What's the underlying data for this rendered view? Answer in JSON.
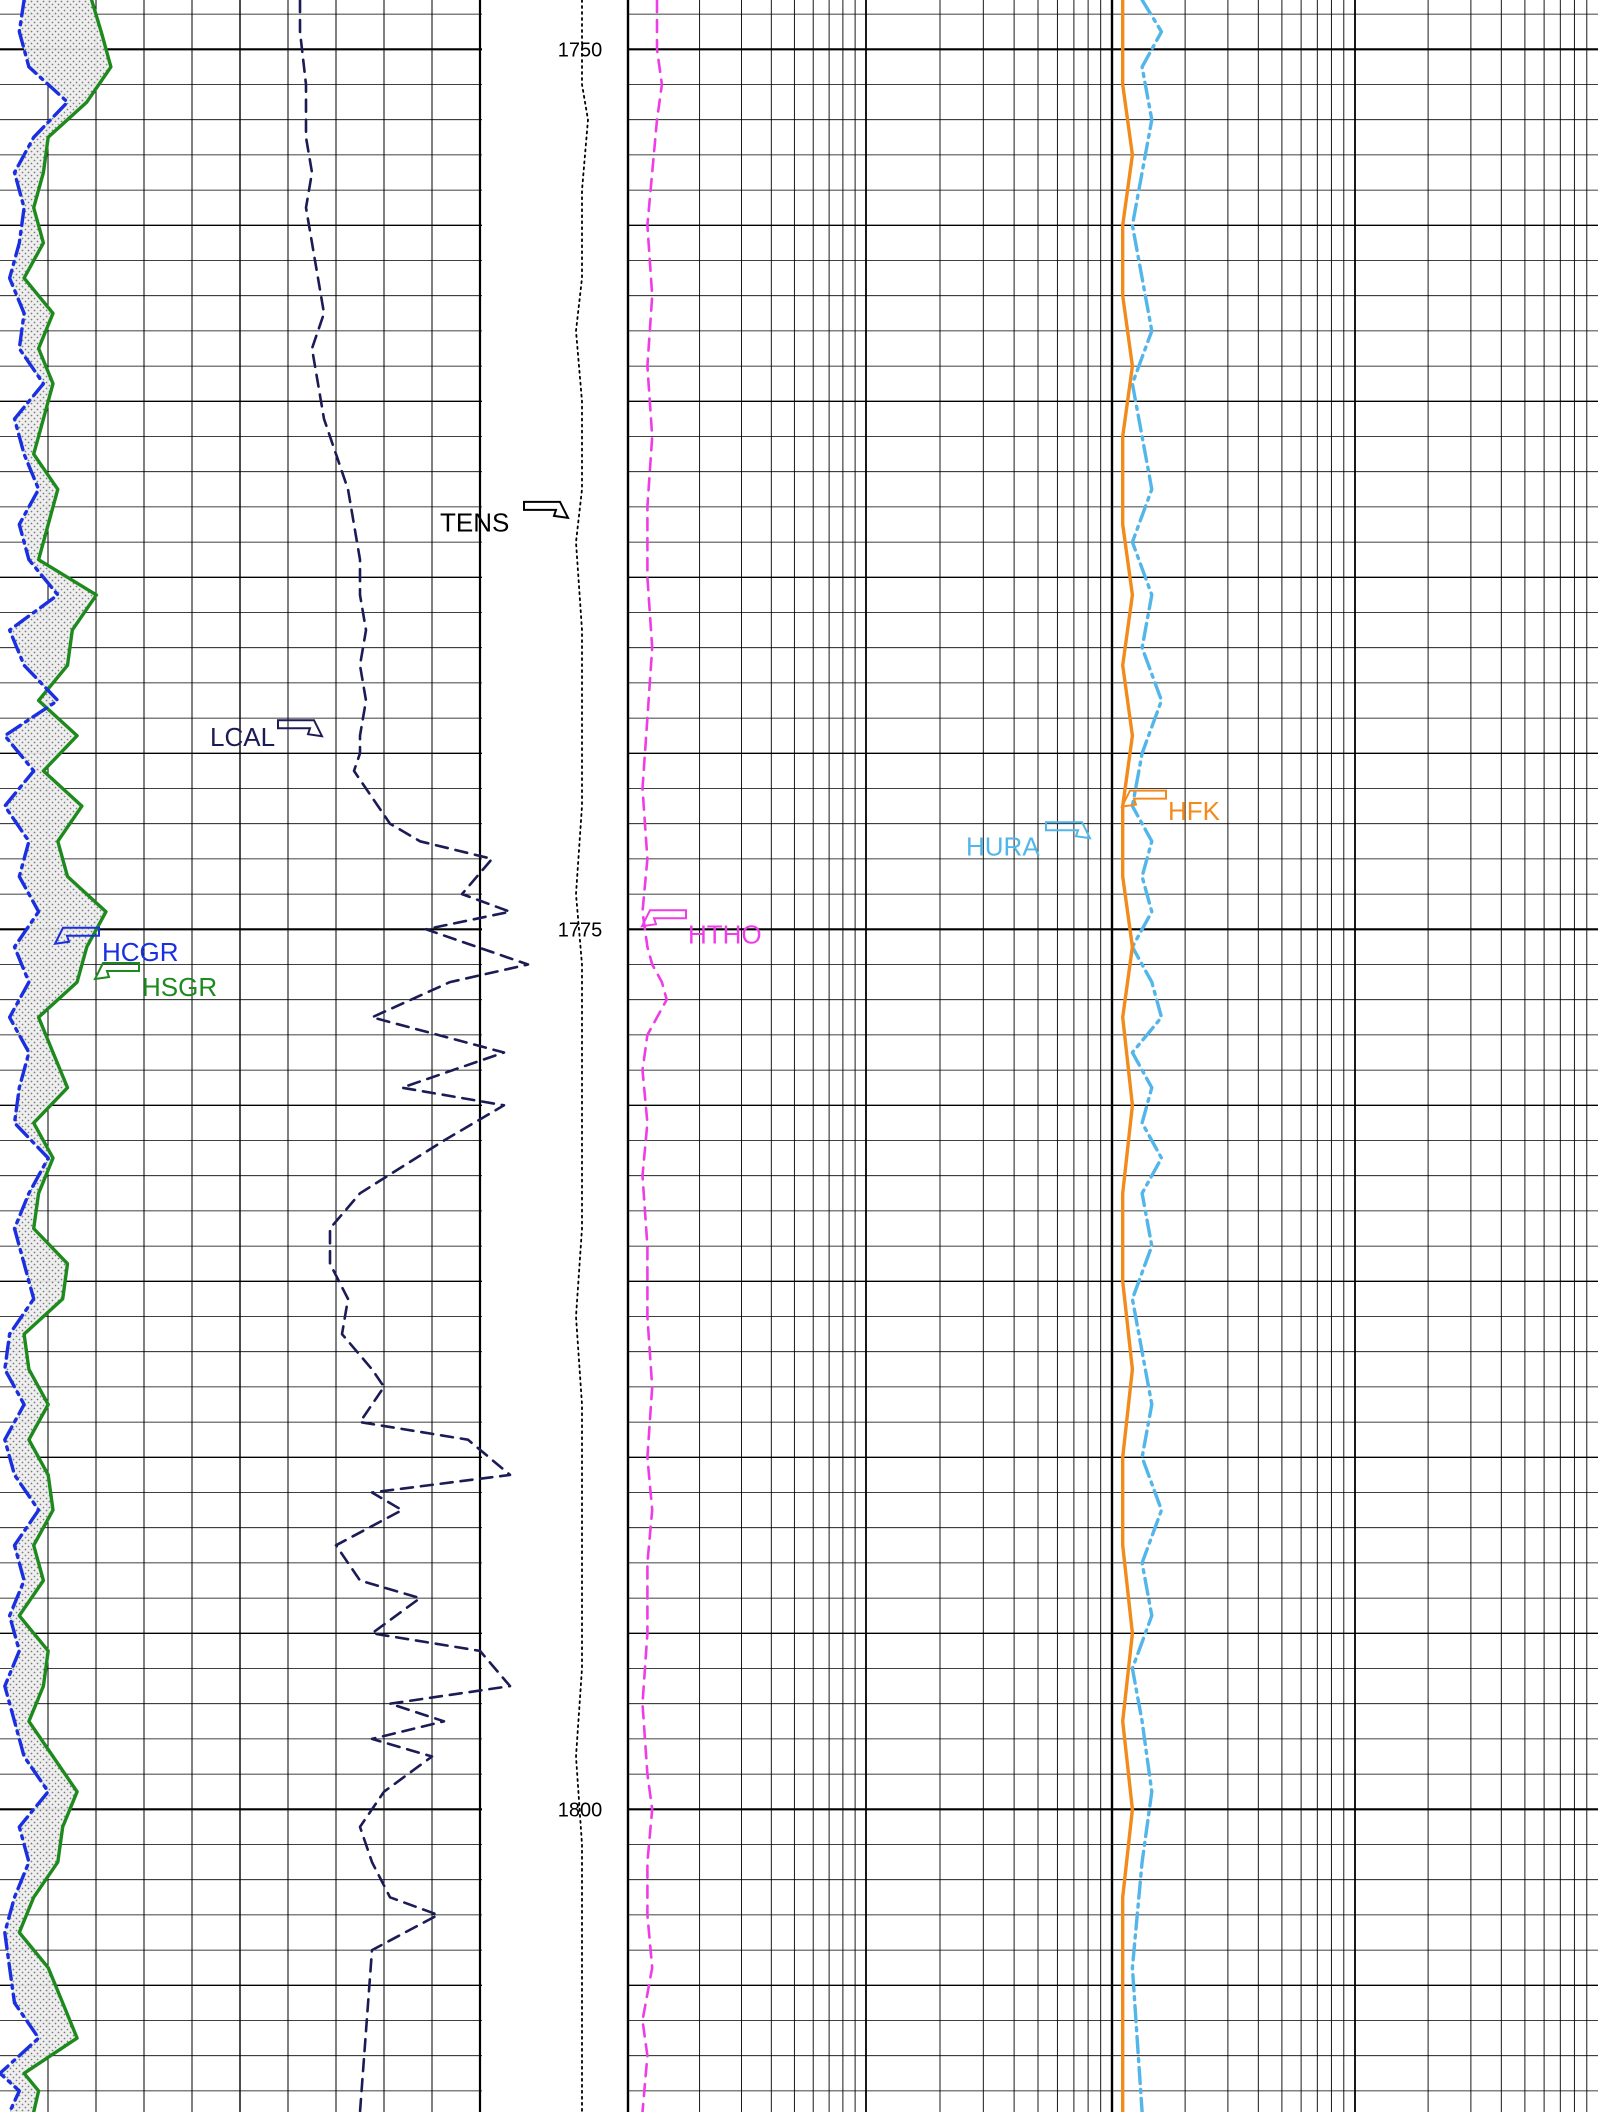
{
  "chart_data": {
    "type": "line",
    "depth_axis": {
      "range": [
        1748.6,
        1808.6
      ],
      "tick_labels": [
        "1750",
        "1775",
        "1800"
      ],
      "tick_values": [
        1750,
        1775,
        1800
      ],
      "direction": "downward"
    },
    "grid": true,
    "tracks": [
      {
        "track": 1,
        "curves": [
          {
            "name": "HSGR",
            "color": "#1e8a1e",
            "style": "solid",
            "x": [
              0.19,
              0.21,
              0.23,
              0.18,
              0.1,
              0.09,
              0.07,
              0.09,
              0.05,
              0.11,
              0.08,
              0.11,
              0.09,
              0.07,
              0.12,
              0.1,
              0.08,
              0.2,
              0.15,
              0.14,
              0.08,
              0.16,
              0.09,
              0.17,
              0.12,
              0.14,
              0.22,
              0.18,
              0.16,
              0.08,
              0.11,
              0.14,
              0.07,
              0.11,
              0.08,
              0.07,
              0.14,
              0.13,
              0.05,
              0.06,
              0.1,
              0.06,
              0.1,
              0.11,
              0.07,
              0.09,
              0.04,
              0.1,
              0.09,
              0.06,
              0.11,
              0.16,
              0.13,
              0.12,
              0.07,
              0.04,
              0.1,
              0.13,
              0.16,
              0.05,
              0.08,
              0.07
            ],
            "depth": [
              1748.6,
              1749.5,
              1750.5,
              1751.5,
              1752.5,
              1753.5,
              1754.5,
              1755.5,
              1756.5,
              1757.5,
              1758.5,
              1759.5,
              1760.5,
              1761.5,
              1762.5,
              1763.5,
              1764.5,
              1765.5,
              1766.5,
              1767.5,
              1768.5,
              1769.5,
              1770.5,
              1771.5,
              1772.5,
              1773.5,
              1774.5,
              1775.5,
              1776.5,
              1777.5,
              1778.5,
              1779.5,
              1780.5,
              1781.5,
              1782.5,
              1783.5,
              1784.5,
              1785.5,
              1786.5,
              1787.5,
              1788.5,
              1789.5,
              1790.5,
              1791.5,
              1792.5,
              1793.5,
              1794.5,
              1795.5,
              1796.5,
              1797.5,
              1798.5,
              1799.5,
              1800.5,
              1801.5,
              1802.5,
              1803.5,
              1804.5,
              1805.5,
              1806.5,
              1807.5,
              1808.0,
              1808.6
            ]
          },
          {
            "name": "HCGR",
            "color": "#1a2fe0",
            "style": "dash-dot",
            "x": [
              0.05,
              0.04,
              0.06,
              0.14,
              0.07,
              0.03,
              0.05,
              0.04,
              0.02,
              0.05,
              0.04,
              0.09,
              0.03,
              0.05,
              0.08,
              0.04,
              0.06,
              0.12,
              0.02,
              0.05,
              0.12,
              0.01,
              0.07,
              0.01,
              0.06,
              0.04,
              0.08,
              0.03,
              0.06,
              0.02,
              0.06,
              0.04,
              0.03,
              0.1,
              0.06,
              0.03,
              0.05,
              0.07,
              0.02,
              0.01,
              0.05,
              0.01,
              0.03,
              0.08,
              0.03,
              0.05,
              0.02,
              0.04,
              0.01,
              0.03,
              0.05,
              0.1,
              0.04,
              0.06,
              0.03,
              0.01,
              0.02,
              0.03,
              0.08,
              0.0,
              0.04,
              0.02
            ],
            "depth": [
              1748.6,
              1749.5,
              1750.5,
              1751.5,
              1752.5,
              1753.5,
              1754.5,
              1755.5,
              1756.5,
              1757.5,
              1758.5,
              1759.5,
              1760.5,
              1761.5,
              1762.5,
              1763.5,
              1764.5,
              1765.5,
              1766.5,
              1767.5,
              1768.5,
              1769.5,
              1770.5,
              1771.5,
              1772.5,
              1773.5,
              1774.5,
              1775.5,
              1776.5,
              1777.5,
              1778.5,
              1779.5,
              1780.5,
              1781.5,
              1782.5,
              1783.5,
              1784.5,
              1785.5,
              1786.5,
              1787.5,
              1788.5,
              1789.5,
              1790.5,
              1791.5,
              1792.5,
              1793.5,
              1794.5,
              1795.5,
              1796.5,
              1797.5,
              1798.5,
              1799.5,
              1800.5,
              1801.5,
              1802.5,
              1803.5,
              1804.5,
              1805.5,
              1806.5,
              1807.5,
              1808.0,
              1808.6
            ]
          },
          {
            "name": "LCAL",
            "color": "#1b1b55",
            "style": "dashed",
            "x": [
              0.5,
              0.5,
              0.51,
              0.51,
              0.52,
              0.51,
              0.52,
              0.53,
              0.54,
              0.52,
              0.53,
              0.54,
              0.56,
              0.58,
              0.59,
              0.6,
              0.6,
              0.61,
              0.6,
              0.61,
              0.6,
              0.6,
              0.59,
              0.61,
              0.63,
              0.65,
              0.7,
              0.82,
              0.77,
              0.85,
              0.71,
              0.88,
              0.75,
              0.62,
              0.84,
              0.67,
              0.84,
              0.74,
              0.6,
              0.55,
              0.55,
              0.58,
              0.57,
              0.62,
              0.64,
              0.6,
              0.78,
              0.85,
              0.62,
              0.67,
              0.56,
              0.6,
              0.7,
              0.62,
              0.8,
              0.85,
              0.65,
              0.74,
              0.62,
              0.72,
              0.64,
              0.6,
              0.62,
              0.65,
              0.73,
              0.62,
              0.6
            ],
            "depth": [
              1748.6,
              1749.5,
              1751.0,
              1752.5,
              1753.5,
              1754.5,
              1755.5,
              1756.5,
              1757.5,
              1758.5,
              1759.5,
              1760.5,
              1761.5,
              1762.5,
              1763.5,
              1764.5,
              1765.5,
              1766.5,
              1767.5,
              1768.5,
              1769.5,
              1770.0,
              1770.5,
              1771.0,
              1771.5,
              1772.0,
              1772.5,
              1773.0,
              1774.0,
              1774.5,
              1775.0,
              1776.0,
              1776.5,
              1777.5,
              1778.5,
              1779.5,
              1780.0,
              1781.0,
              1782.5,
              1783.5,
              1784.5,
              1785.5,
              1786.5,
              1787.5,
              1788.0,
              1789.0,
              1789.5,
              1790.5,
              1791.0,
              1791.5,
              1792.5,
              1793.5,
              1794.0,
              1795.0,
              1795.5,
              1796.5,
              1797.0,
              1797.5,
              1798.0,
              1798.5,
              1799.5,
              1800.5,
              1801.5,
              1802.5,
              1803.0,
              1804.0,
              1808.6
            ]
          }
        ]
      },
      {
        "track": 2,
        "curves": [
          {
            "name": "TENS",
            "color": "#000000",
            "style": "dotted",
            "x": [
              0.97,
              0.97,
              0.98,
              0.97,
              0.97,
              0.96,
              0.97,
              0.97,
              0.96,
              0.97,
              0.97,
              0.97,
              0.96,
              0.97,
              0.97,
              0.97,
              0.97,
              0.96,
              0.97,
              0.97,
              0.97,
              0.97,
              0.96,
              0.97,
              0.97,
              0.97
            ],
            "depth": [
              1748.6,
              1751.0,
              1752.0,
              1754.0,
              1756.5,
              1758.0,
              1760.0,
              1762.5,
              1764.0,
              1766.5,
              1769.0,
              1771.5,
              1774.0,
              1776.0,
              1778.5,
              1781.0,
              1783.5,
              1786.0,
              1788.5,
              1791.0,
              1793.5,
              1796.0,
              1798.5,
              1801.0,
              1804.5,
              1808.6
            ]
          }
        ]
      },
      {
        "track": 3,
        "curves": [
          {
            "name": "HTHO",
            "color": "#ee3de6",
            "style": "dashed",
            "x": [
              0.06,
              0.06,
              0.07,
              0.06,
              0.05,
              0.04,
              0.05,
              0.04,
              0.05,
              0.04,
              0.04,
              0.05,
              0.04,
              0.03,
              0.04,
              0.03,
              0.04,
              0.05,
              0.07,
              0.08,
              0.04,
              0.03,
              0.04,
              0.03,
              0.04,
              0.04,
              0.05,
              0.04,
              0.05,
              0.04,
              0.04,
              0.03,
              0.04,
              0.05,
              0.04,
              0.04,
              0.05,
              0.03,
              0.04,
              0.03
            ],
            "depth": [
              1748.6,
              1750.0,
              1751.0,
              1752.0,
              1753.5,
              1755.0,
              1757.0,
              1759.0,
              1761.0,
              1763.0,
              1765.0,
              1767.0,
              1769.0,
              1771.0,
              1773.0,
              1774.5,
              1775.5,
              1776.0,
              1776.5,
              1777.0,
              1778.0,
              1779.0,
              1780.5,
              1782.0,
              1784.0,
              1786.0,
              1788.0,
              1790.0,
              1791.5,
              1793.0,
              1795.0,
              1797.0,
              1799.0,
              1800.0,
              1801.5,
              1803.0,
              1804.5,
              1806.0,
              1807.0,
              1808.6
            ]
          },
          {
            "name": "HURA",
            "color": "#52b6ea",
            "style": "dash-dot",
            "x": [
              0.53,
              0.55,
              0.53,
              0.54,
              0.53,
              0.52,
              0.53,
              0.54,
              0.52,
              0.53,
              0.54,
              0.52,
              0.54,
              0.53,
              0.55,
              0.53,
              0.52,
              0.54,
              0.53,
              0.54,
              0.52,
              0.54,
              0.55,
              0.52,
              0.54,
              0.53,
              0.55,
              0.53,
              0.54,
              0.52,
              0.53,
              0.54,
              0.53,
              0.55,
              0.53,
              0.54,
              0.52,
              0.53,
              0.54,
              0.53,
              0.52,
              0.53
            ],
            "depth": [
              1748.6,
              1749.5,
              1750.5,
              1752.0,
              1753.5,
              1755.0,
              1756.5,
              1758.0,
              1759.5,
              1761.0,
              1762.5,
              1764.0,
              1765.5,
              1767.0,
              1768.5,
              1770.0,
              1771.5,
              1772.5,
              1773.5,
              1774.5,
              1775.5,
              1776.5,
              1777.5,
              1778.5,
              1779.5,
              1780.5,
              1781.5,
              1782.5,
              1784.0,
              1785.5,
              1787.0,
              1788.5,
              1790.0,
              1791.5,
              1793.0,
              1794.5,
              1796.0,
              1797.5,
              1799.5,
              1801.5,
              1804.5,
              1808.6
            ]
          }
        ]
      },
      {
        "track": 4,
        "curves": [
          {
            "name": "HFK",
            "color": "#f28a1c",
            "style": "solid",
            "x": [
              0.51,
              0.51,
              0.52,
              0.51,
              0.51,
              0.52,
              0.51,
              0.51,
              0.52,
              0.51,
              0.52,
              0.51,
              0.51,
              0.52,
              0.51,
              0.52,
              0.51,
              0.51,
              0.52,
              0.51,
              0.51,
              0.52,
              0.51,
              0.52,
              0.51,
              0.51,
              0.51
            ],
            "depth": [
              1748.6,
              1751.0,
              1753.0,
              1755.0,
              1757.0,
              1759.0,
              1761.0,
              1763.5,
              1765.5,
              1767.5,
              1769.5,
              1771.5,
              1773.5,
              1775.5,
              1777.5,
              1780.0,
              1782.5,
              1785.0,
              1787.5,
              1790.0,
              1792.5,
              1795.0,
              1797.5,
              1800.0,
              1802.5,
              1805.0,
              1808.6
            ]
          }
        ]
      }
    ],
    "curve_labels": {
      "HSGR": "HSGR",
      "HCGR": "HCGR",
      "LCAL": "LCAL",
      "TENS": "TENS",
      "HTHO": "HTHO",
      "HURA": "HURA",
      "HFK": "HFK"
    }
  }
}
